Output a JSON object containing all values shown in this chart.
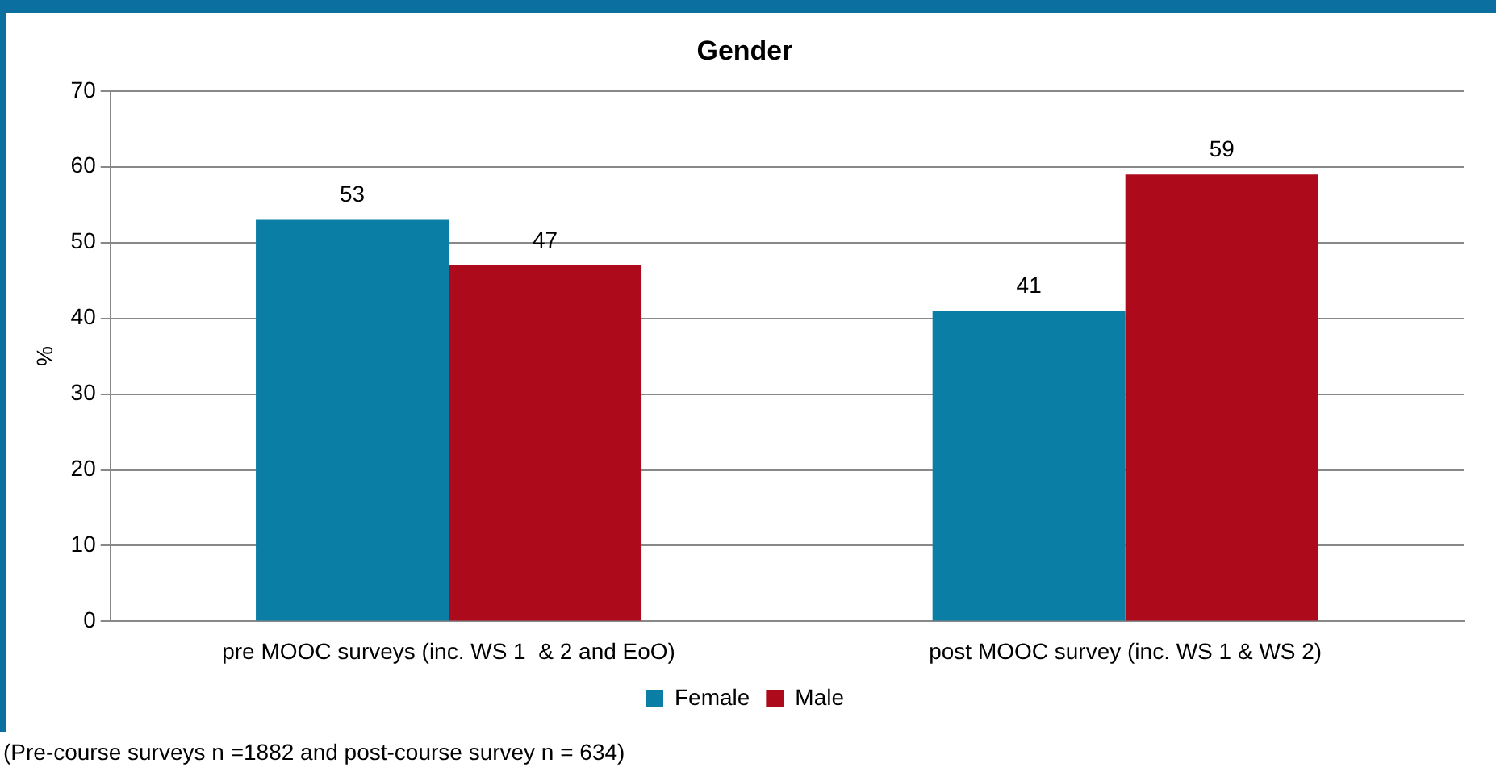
{
  "chart_data": {
    "type": "bar",
    "title": "Gender",
    "ylabel": "%",
    "categories": [
      "pre MOOC surveys (inc. WS 1  & 2 and EoO)",
      "post MOOC survey (inc. WS 1 & WS 2)"
    ],
    "series": [
      {
        "name": "Female",
        "color": "#0b7ea6",
        "values": [
          53,
          41
        ]
      },
      {
        "name": "Male",
        "color": "#ad0a1c",
        "values": [
          47,
          59
        ]
      }
    ],
    "ylim": [
      0,
      70
    ],
    "yticks": [
      0,
      10,
      20,
      30,
      40,
      50,
      60,
      70
    ],
    "grid": "y",
    "legend": "bottom",
    "data_labels": true,
    "annotations": [
      "(Pre-course surveys n =1882 and post-course survey n = 634)"
    ]
  }
}
